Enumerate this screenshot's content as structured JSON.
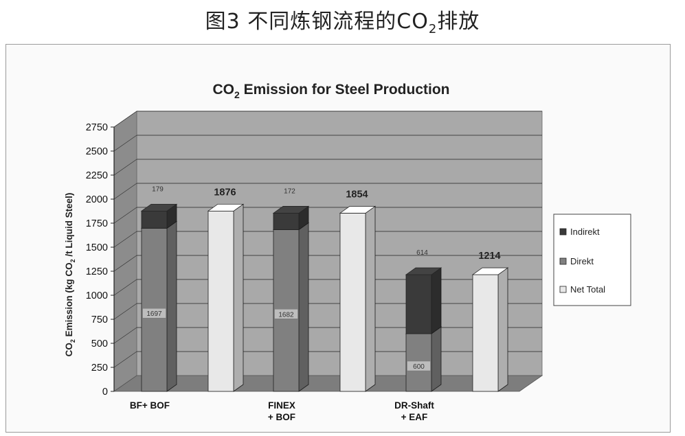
{
  "figure": {
    "caption_prefix": "图3 不同炼钢流程的CO",
    "caption_sub": "2",
    "caption_suffix": "排放"
  },
  "colors": {
    "wall": "#a9a9a9",
    "wall_side": "#8c8c8c",
    "floor": "#7d7d7d",
    "indirekt": "#3a3a3a",
    "direkt": "#808080",
    "net_total": "#e8e8e8"
  },
  "chart_data": {
    "type": "bar",
    "stacked": true,
    "three_d": true,
    "title_main": "CO",
    "title_sub": "2",
    "title_rest": " Emission for Steel Production",
    "ylabel_main": "CO",
    "ylabel_sub": "2",
    "ylabel_rest": " Emission (kg CO",
    "ylabel_sub2": "2",
    "ylabel_rest2": " /t Liquid Steel)",
    "ylim": [
      0,
      2750
    ],
    "yticks": [
      "0",
      "250",
      "500",
      "750",
      "1000",
      "1250",
      "1500",
      "1750",
      "2000",
      "2250",
      "2500",
      "2750"
    ],
    "grid": true,
    "legend_position": "right",
    "legend": [
      "Indirekt",
      "Direkt",
      "Net Total"
    ],
    "groups": [
      {
        "label_lines": [
          "BF+ BOF"
        ],
        "stack": {
          "direkt": 1697,
          "indirekt": 179,
          "direkt_label": "1697",
          "indirekt_label": "179"
        },
        "net_total": 1876,
        "net_label": "1876"
      },
      {
        "label_lines": [
          "FINEX",
          "+ BOF"
        ],
        "stack": {
          "direkt": 1682,
          "indirekt": 172,
          "direkt_label": "1682",
          "indirekt_label": "172"
        },
        "net_total": 1854,
        "net_label": "1854"
      },
      {
        "label_lines": [
          "DR-Shaft",
          "+ EAF"
        ],
        "stack": {
          "direkt": 600,
          "indirekt": 614,
          "direkt_label": "600",
          "indirekt_label": "614"
        },
        "net_total": 1214,
        "net_label": "1214"
      }
    ]
  }
}
